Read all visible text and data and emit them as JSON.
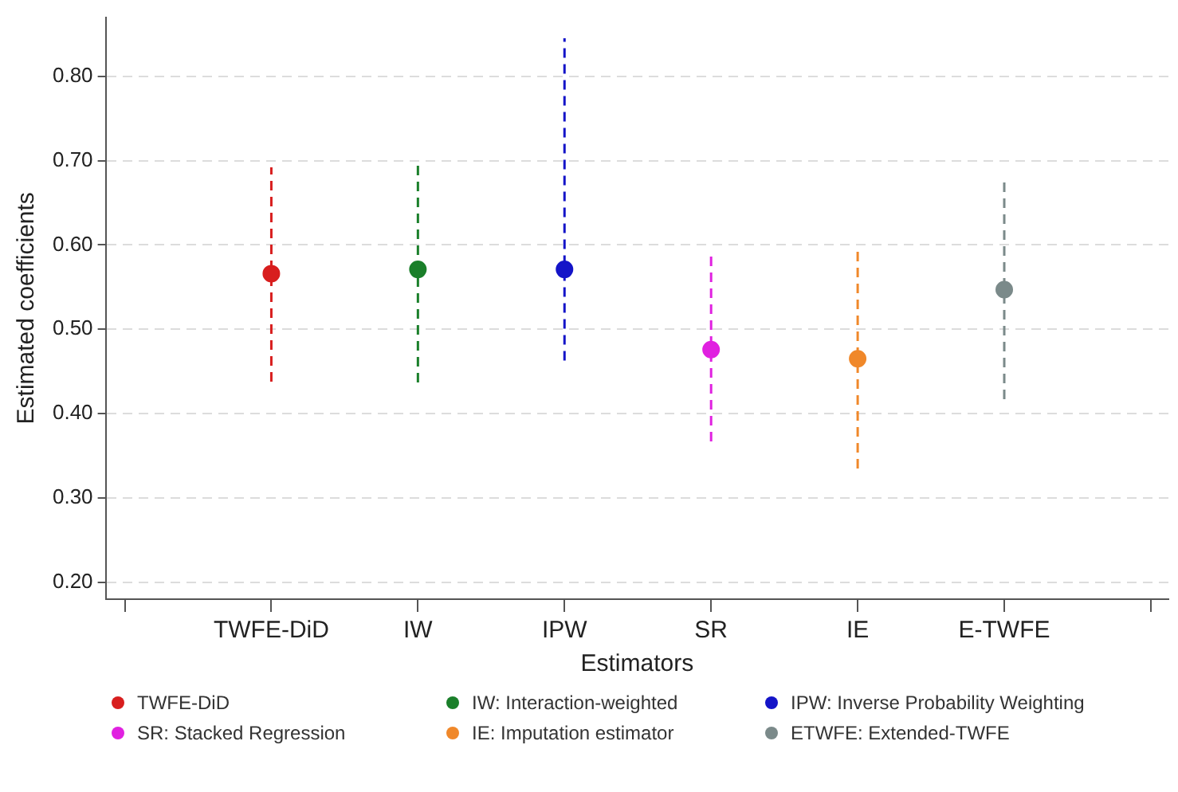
{
  "chart_data": {
    "type": "scatter",
    "xlabel": "Estimators",
    "ylabel": "Estimated coefficients",
    "categories": [
      null,
      "TWFE-DiD",
      "IW",
      "IPW",
      "SR",
      "IE",
      "E-TWFE",
      null
    ],
    "ylim": [
      0.18,
      0.87
    ],
    "yticks": [
      {
        "value": 0.2,
        "label": "0.20"
      },
      {
        "value": 0.3,
        "label": "0.30"
      },
      {
        "value": 0.4,
        "label": "0.40"
      },
      {
        "value": 0.5,
        "label": "0.50"
      },
      {
        "value": 0.6,
        "label": "0.60"
      },
      {
        "value": 0.7,
        "label": "0.70"
      },
      {
        "value": 0.8,
        "label": "0.80"
      }
    ],
    "grid": "y",
    "legend": "bottom",
    "marker": "circle",
    "line_style": "dashed",
    "series": [
      {
        "name": "TWFE-DiD",
        "color": "#d81e1e",
        "values": [
          null,
          0.566,
          null,
          null,
          null,
          null,
          null,
          null
        ],
        "errors": [
          null,
          [
            0.438,
            0.692
          ],
          null,
          null,
          null,
          null,
          null,
          null
        ]
      },
      {
        "name": "IW: Interaction-weighted",
        "color": "#1a7f2a",
        "values": [
          null,
          null,
          0.571,
          null,
          null,
          null,
          null,
          null
        ],
        "errors": [
          null,
          null,
          [
            0.437,
            0.699
          ],
          null,
          null,
          null,
          null,
          null
        ]
      },
      {
        "name": "IPW: Inverse Probability Weighting",
        "color": "#1414c8",
        "values": [
          null,
          null,
          null,
          0.571,
          null,
          null,
          null,
          null
        ],
        "errors": [
          null,
          null,
          null,
          [
            0.463,
            0.845
          ],
          null,
          null,
          null,
          null
        ]
      },
      {
        "name": "SR: Stacked Regression",
        "color": "#e021e0",
        "values": [
          null,
          null,
          null,
          null,
          0.476,
          null,
          null,
          null
        ],
        "errors": [
          null,
          null,
          null,
          null,
          [
            0.367,
            0.587
          ],
          null,
          null,
          null
        ]
      },
      {
        "name": "IE: Imputation estimator",
        "color": "#f0882a",
        "values": [
          null,
          null,
          null,
          null,
          null,
          0.465,
          null,
          null
        ],
        "errors": [
          null,
          null,
          null,
          null,
          null,
          [
            0.335,
            0.597
          ],
          null,
          null
        ]
      },
      {
        "name": "ETWFE: Extended-TWFE",
        "color": "#7b8a8a",
        "values": [
          null,
          null,
          null,
          null,
          null,
          null,
          0.547,
          null
        ],
        "errors": [
          null,
          null,
          null,
          null,
          null,
          null,
          [
            0.417,
            0.674
          ],
          null
        ]
      }
    ]
  }
}
